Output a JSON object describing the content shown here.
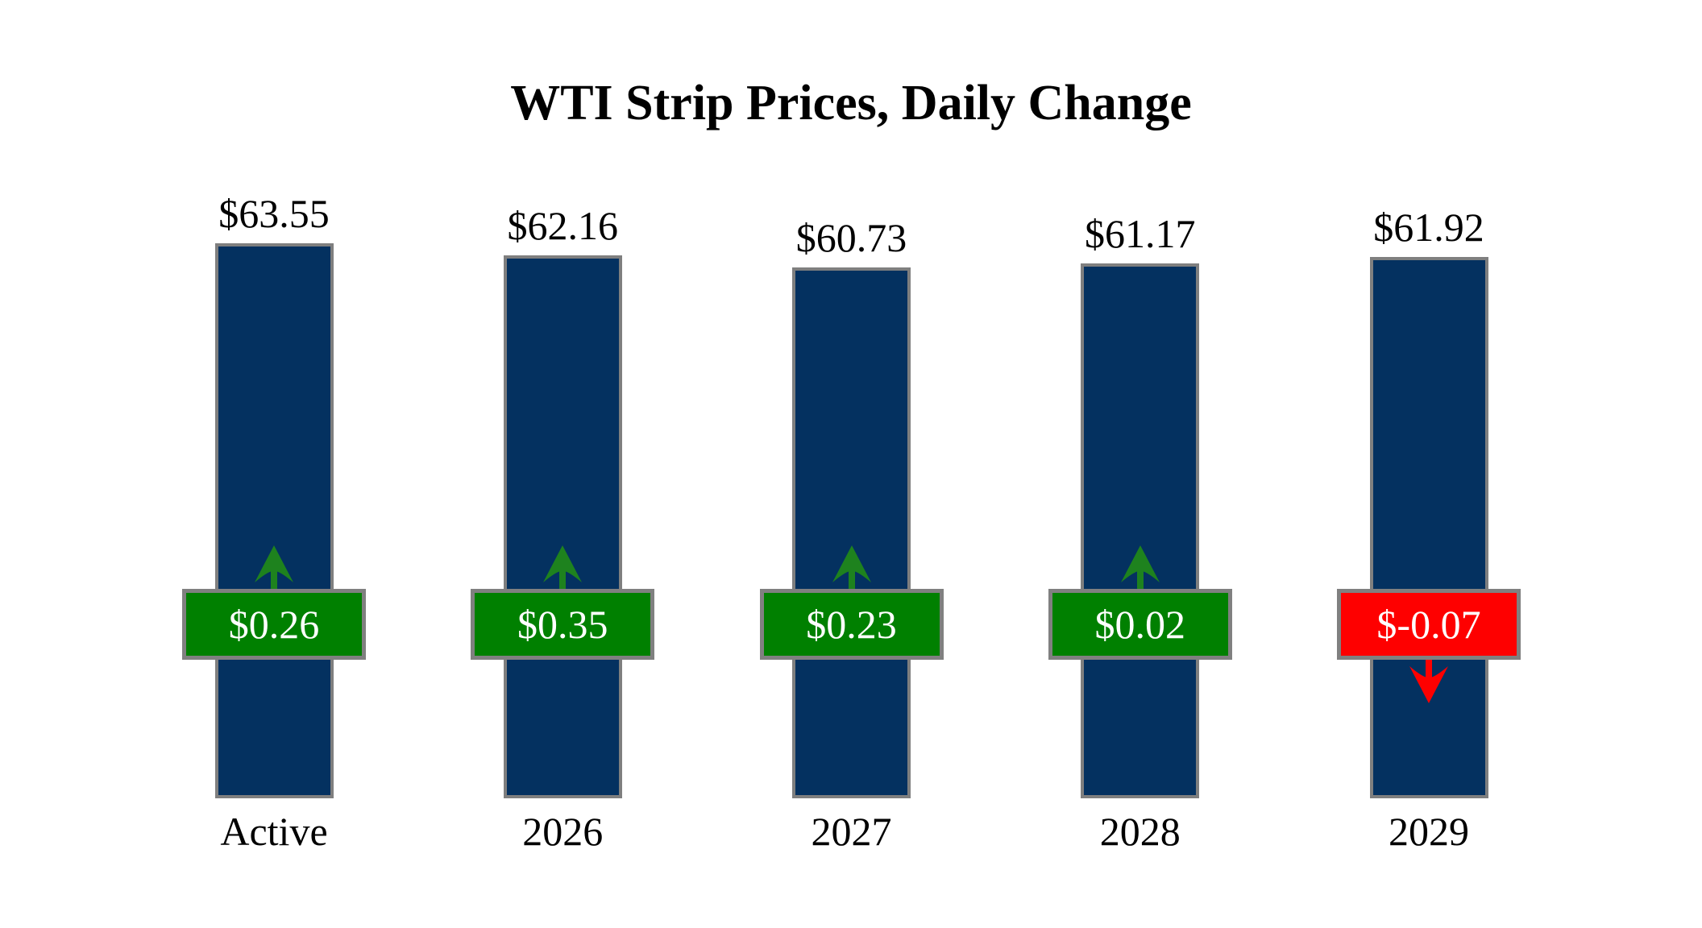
{
  "title": "WTI Strip Prices, Daily Change",
  "chart_data": {
    "type": "bar",
    "title": "WTI Strip Prices, Daily Change",
    "categories": [
      "Active",
      "2026",
      "2027",
      "2028",
      "2029"
    ],
    "series": [
      {
        "name": "Strip Price",
        "values": [
          63.55,
          62.16,
          60.73,
          61.17,
          61.92
        ]
      },
      {
        "name": "Daily Change",
        "values": [
          0.26,
          0.35,
          0.23,
          0.02,
          -0.07
        ]
      }
    ],
    "price_labels": [
      "$63.55",
      "$62.16",
      "$60.73",
      "$61.17",
      "$61.92"
    ],
    "change_labels": [
      "$0.26",
      "$0.35",
      "$0.23",
      "$0.02",
      "$-0.07"
    ],
    "directions": [
      "up",
      "up",
      "up",
      "up",
      "down"
    ],
    "xlabel": "",
    "ylabel": "",
    "legend": "none",
    "axes_visible": false,
    "grid": false,
    "colors": {
      "bar_fill": "#043160",
      "bar_border": "#7f7f7f",
      "badge_up": "#008000",
      "badge_down": "#fe0000",
      "badge_border": "#808080",
      "arrow_up": "#1e821e",
      "arrow_down": "#fe0000",
      "badge_text": "#ffffff",
      "label_text": "#000000",
      "background": "#ffffff"
    }
  }
}
